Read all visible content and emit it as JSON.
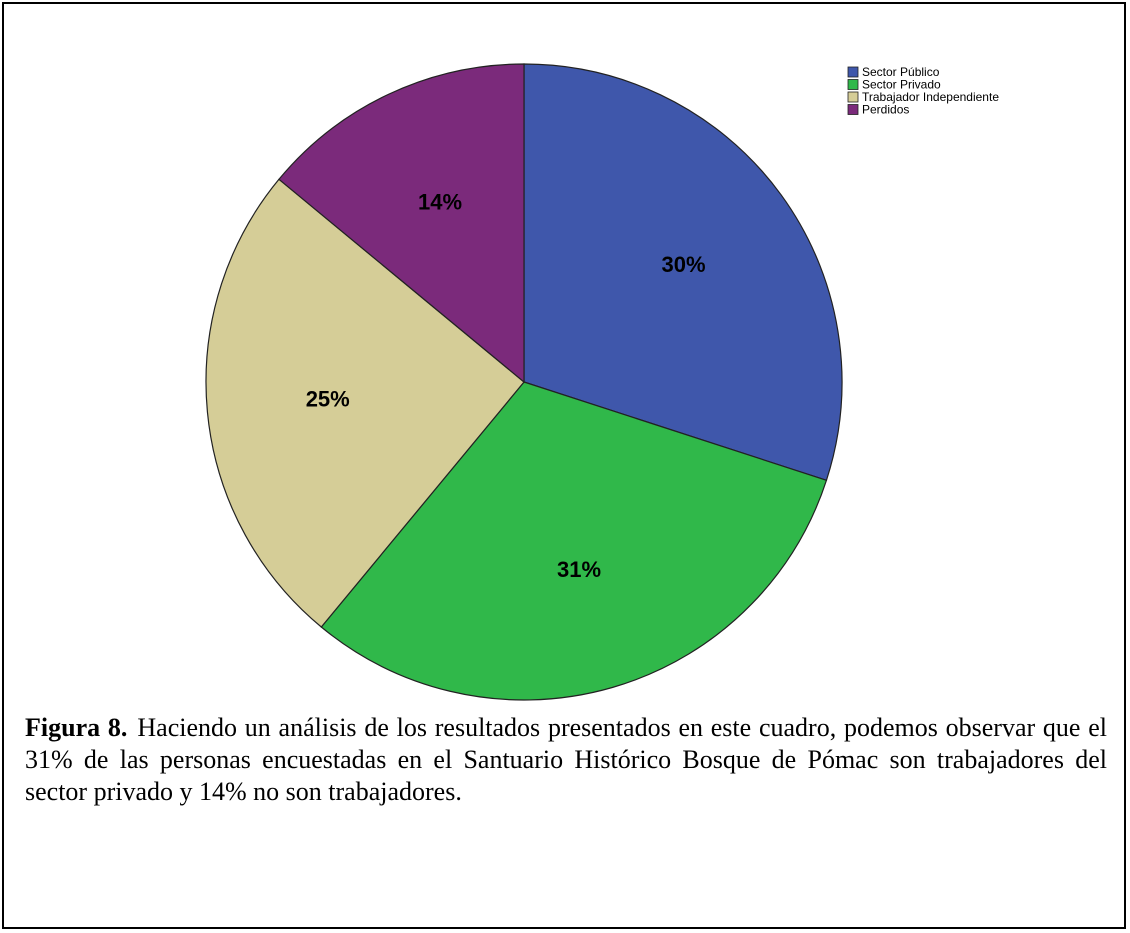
{
  "chart_data": {
    "type": "pie",
    "categories": [
      "Sector Público",
      "Sector Privado",
      "Trabajador Independiente",
      "Perdidos"
    ],
    "values": [
      30,
      31,
      25,
      14
    ],
    "value_labels": [
      "30%",
      "31%",
      "25%",
      "14%"
    ],
    "colors": [
      "#3f57ab",
      "#30b84a",
      "#d5cd97",
      "#7b2a7b"
    ],
    "legend": "top-right"
  },
  "caption": {
    "label": "Figura 8.",
    "text": "Haciendo un análisis de los resultados presentados en este cuadro, podemos observar que el 31% de las personas encuestadas en el Santuario Histórico Bosque de Pómac son trabajadores del sector privado y 14% no son trabajadores."
  }
}
